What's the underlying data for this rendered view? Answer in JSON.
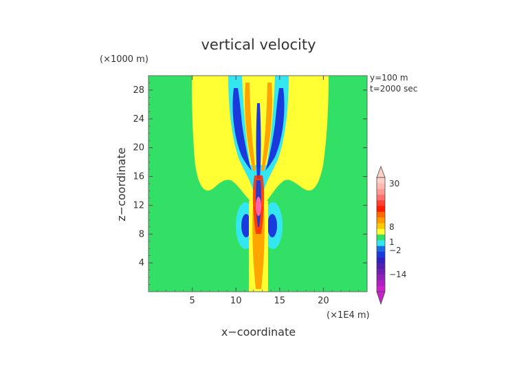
{
  "chart_data": {
    "type": "heatmap",
    "title": "vertical velocity",
    "xlabel": "x−coordinate",
    "ylabel": "z−coordinate",
    "x_scale_label": "(×1E4 m)",
    "y_scale_label": "(×1000 m)",
    "annotations": [
      "y=100 m",
      "t=2000 sec"
    ],
    "xlim": [
      0,
      25
    ],
    "ylim": [
      0,
      30
    ],
    "x_ticks": [
      5,
      10,
      15,
      20
    ],
    "x_tick_labels": [
      "5",
      "10",
      "15",
      "20"
    ],
    "y_ticks": [
      4,
      8,
      12,
      16,
      20,
      24,
      28
    ],
    "y_tick_labels": [
      "4",
      "8",
      "12",
      "16",
      "20",
      "24",
      "28"
    ],
    "colorbar_labels": [
      "30",
      "8",
      "1",
      "−2",
      "−14"
    ],
    "colors": {
      "background_field": "#33e066",
      "weak_positive": "#ffff33",
      "weak_negative": "#33e6f0",
      "strong_negative": "#1a3adb",
      "positive_mid": "#ffa500",
      "positive_high": "#ff2a00",
      "positive_max": "#ffc8c0",
      "negative_max": "#cc33cc"
    }
  }
}
